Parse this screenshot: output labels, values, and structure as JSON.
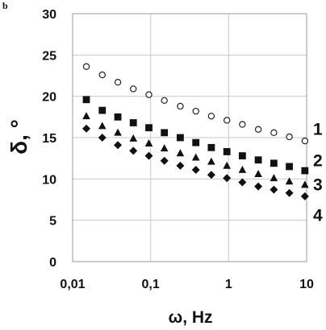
{
  "panel_label": "b",
  "chart_data": {
    "type": "scatter",
    "xlabel": "ω, Hz",
    "ylabel": "δ, °",
    "xscale": "log",
    "xlim": [
      0.01,
      10
    ],
    "ylim": [
      0,
      30
    ],
    "x_ticks": [
      "0,01",
      "0,1",
      "1",
      "10"
    ],
    "y_ticks": [
      "0",
      "5",
      "10",
      "15",
      "20",
      "25",
      "30"
    ],
    "grid": true,
    "x": [
      0.015,
      0.024,
      0.038,
      0.06,
      0.095,
      0.15,
      0.24,
      0.38,
      0.6,
      0.95,
      1.5,
      2.4,
      3.8,
      6.0,
      9.5
    ],
    "series": [
      {
        "name": "1",
        "marker": "open-circle",
        "values": [
          23.6,
          22.6,
          21.7,
          20.9,
          20.2,
          19.5,
          18.8,
          18.2,
          17.6,
          17.1,
          16.6,
          16.0,
          15.6,
          15.1,
          14.6
        ]
      },
      {
        "name": "2",
        "marker": "filled-square",
        "values": [
          19.6,
          18.3,
          17.5,
          16.8,
          16.2,
          15.6,
          15.0,
          14.4,
          13.8,
          13.3,
          12.8,
          12.3,
          11.9,
          11.5,
          11.0
        ]
      },
      {
        "name": "3",
        "marker": "filled-triangle",
        "values": [
          17.6,
          16.4,
          15.6,
          14.9,
          14.3,
          13.7,
          13.1,
          12.6,
          12.1,
          11.6,
          11.1,
          10.6,
          10.1,
          9.7,
          9.3
        ]
      },
      {
        "name": "4",
        "marker": "filled-diamond",
        "values": [
          16.1,
          15.0,
          14.1,
          13.4,
          12.8,
          12.2,
          11.6,
          11.1,
          10.5,
          10.1,
          9.6,
          9.1,
          8.7,
          8.3,
          7.9
        ]
      }
    ]
  }
}
